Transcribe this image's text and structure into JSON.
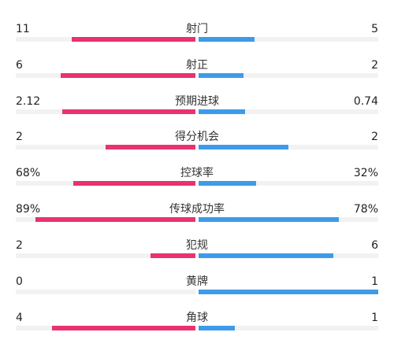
{
  "colors": {
    "home": "#e8336f",
    "away": "#3d9be9",
    "track": "#f2f2f2"
  },
  "stats": [
    {
      "label": "射门",
      "home": "11",
      "away": "5",
      "home_fill": 0.69,
      "away_fill": 0.31
    },
    {
      "label": "射正",
      "home": "6",
      "away": "2",
      "home_fill": 0.75,
      "away_fill": 0.25
    },
    {
      "label": "预期进球",
      "home": "2.12",
      "away": "0.74",
      "home_fill": 0.74,
      "away_fill": 0.26
    },
    {
      "label": "得分机会",
      "home": "2",
      "away": "2",
      "home_fill": 0.5,
      "away_fill": 0.5
    },
    {
      "label": "控球率",
      "home": "68%",
      "away": "32%",
      "home_fill": 0.68,
      "away_fill": 0.32
    },
    {
      "label": "传球成功率",
      "home": "89%",
      "away": "78%",
      "home_fill": 0.89,
      "away_fill": 0.78
    },
    {
      "label": "犯规",
      "home": "2",
      "away": "6",
      "home_fill": 0.25,
      "away_fill": 0.75
    },
    {
      "label": "黄牌",
      "home": "0",
      "away": "1",
      "home_fill": 0.0,
      "away_fill": 1.0
    },
    {
      "label": "角球",
      "home": "4",
      "away": "1",
      "home_fill": 0.8,
      "away_fill": 0.2
    }
  ]
}
